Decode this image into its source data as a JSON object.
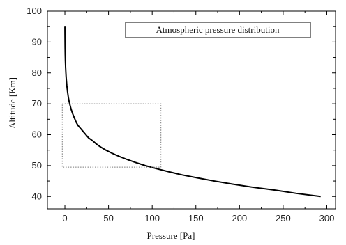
{
  "chart_data": {
    "type": "line",
    "title": "",
    "xlabel": "Pressure [Pa]",
    "ylabel": "Altitude [Km]",
    "xlim": [
      -20,
      310
    ],
    "ylim": [
      36,
      100
    ],
    "x_ticks": [
      0,
      50,
      100,
      150,
      200,
      250,
      300
    ],
    "y_ticks": [
      40,
      50,
      60,
      70,
      80,
      90,
      100
    ],
    "legend": {
      "text": "Atmospheric pressure distribution",
      "placement": "top-right"
    },
    "grid": false,
    "series": [
      {
        "name": "Atmospheric pressure distribution",
        "color": "#000000",
        "points": [
          [
            293,
            40
          ],
          [
            265,
            41
          ],
          [
            242,
            42
          ],
          [
            215,
            43
          ],
          [
            192,
            44
          ],
          [
            171,
            45
          ],
          [
            152,
            46
          ],
          [
            134,
            47
          ],
          [
            119,
            48
          ],
          [
            105,
            49
          ],
          [
            92,
            50
          ],
          [
            81,
            51
          ],
          [
            71,
            52
          ],
          [
            62,
            53
          ],
          [
            54,
            54
          ],
          [
            47,
            55
          ],
          [
            41,
            56
          ],
          [
            36,
            57
          ],
          [
            32,
            58
          ],
          [
            27,
            59
          ],
          [
            24,
            60
          ],
          [
            21,
            61
          ],
          [
            18,
            62
          ],
          [
            15,
            63
          ],
          [
            13,
            64
          ],
          [
            11.5,
            65
          ],
          [
            10,
            66
          ],
          [
            8.6,
            67
          ],
          [
            7.4,
            68
          ],
          [
            6.4,
            69
          ],
          [
            5.5,
            70
          ],
          [
            4.7,
            71
          ],
          [
            4.0,
            72
          ],
          [
            3.5,
            73
          ],
          [
            3.0,
            74
          ],
          [
            2.6,
            75
          ],
          [
            2.2,
            76
          ],
          [
            1.9,
            77
          ],
          [
            1.6,
            78
          ],
          [
            1.35,
            79
          ],
          [
            1.15,
            80
          ],
          [
            0.8,
            82
          ],
          [
            0.55,
            84
          ],
          [
            0.38,
            86
          ],
          [
            0.26,
            88
          ],
          [
            0.18,
            90
          ],
          [
            0.1,
            92.5
          ],
          [
            0.05,
            95
          ]
        ]
      }
    ],
    "annotation_box": {
      "x_range": [
        -3,
        110
      ],
      "y_range": [
        49.5,
        70
      ],
      "style": "dotted"
    }
  }
}
